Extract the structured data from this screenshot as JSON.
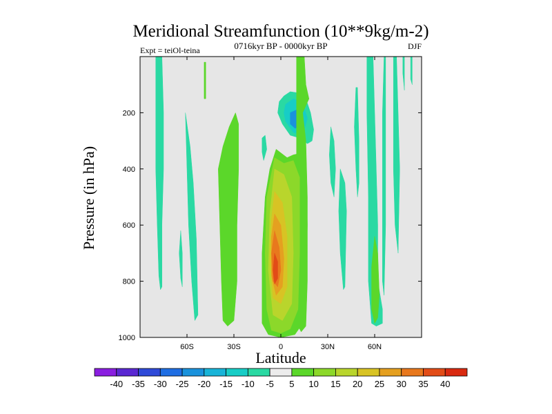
{
  "chart_data": {
    "type": "heatmap",
    "title": "Meridional Streamfunction (10**9kg/m-2)",
    "subtitle": "0716kyr BP - 0000kyr BP",
    "left_label": "Expt = teiOl-teina",
    "right_label": "DJF",
    "xlabel": "Latitude",
    "ylabel": "Pressure (in hPa)",
    "xlim": [
      -90,
      90
    ],
    "ylim": [
      1000,
      0
    ],
    "x_ticks": [
      {
        "value": -60,
        "label": "60S"
      },
      {
        "value": -30,
        "label": "30S"
      },
      {
        "value": 0,
        "label": "0"
      },
      {
        "value": 30,
        "label": "30N"
      },
      {
        "value": 60,
        "label": "60N"
      }
    ],
    "y_ticks": [
      {
        "value": 200,
        "label": "200"
      },
      {
        "value": 400,
        "label": "400"
      },
      {
        "value": 600,
        "label": "600"
      },
      {
        "value": 800,
        "label": "800"
      },
      {
        "value": 1000,
        "label": "1000"
      }
    ],
    "background_color": "#e6e6e6",
    "colorbar": {
      "boundaries": [
        "-40",
        "-35",
        "-30",
        "-25",
        "-20",
        "-15",
        "-10",
        "-5",
        "5",
        "10",
        "15",
        "20",
        "25",
        "30",
        "35",
        "40"
      ],
      "colors": [
        "#8a1ee0",
        "#5a28d2",
        "#2f4ad8",
        "#1f6ee3",
        "#1a92dc",
        "#18b4d8",
        "#17cdc6",
        "#2ad9a3",
        "#ececec",
        "#5bd72a",
        "#8cd82a",
        "#b9d52c",
        "#d8c324",
        "#e5a020",
        "#e8781d",
        "#e24c17",
        "#d92a10"
      ]
    },
    "contour_regions": [
      {
        "name": "cyan-column-60S",
        "level": "-10..-5",
        "color": "#2ad9a3",
        "polygon": [
          [
            -80,
            0
          ],
          [
            -76,
            0
          ],
          [
            -75,
            200
          ],
          [
            -75,
            400
          ],
          [
            -76,
            600
          ],
          [
            -76,
            820
          ],
          [
            -77,
            830
          ],
          [
            -78,
            780
          ],
          [
            -79,
            600
          ],
          [
            -80,
            400
          ],
          [
            -80,
            200
          ]
        ]
      },
      {
        "name": "cyan-column-48S",
        "level": "-10..-5",
        "color": "#2ad9a3",
        "polygon": [
          [
            -64,
            620
          ],
          [
            -63,
            700
          ],
          [
            -63,
            820
          ],
          [
            -64,
            790
          ],
          [
            -65,
            700
          ]
        ]
      },
      {
        "name": "cyan-column-57S",
        "level": "-10..-5",
        "color": "#2ad9a3",
        "polygon": [
          [
            -61,
            200
          ],
          [
            -58,
            320
          ],
          [
            -56,
            450
          ],
          [
            -54,
            650
          ],
          [
            -53,
            920
          ],
          [
            -55,
            940
          ],
          [
            -57,
            800
          ],
          [
            -59,
            600
          ],
          [
            -60,
            400
          ]
        ]
      },
      {
        "name": "green-blob-50S",
        "level": "5..10",
        "color": "#5bd72a",
        "polygon": [
          [
            -49,
            20
          ],
          [
            -48,
            20
          ],
          [
            -48,
            150
          ],
          [
            -49,
            150
          ]
        ]
      },
      {
        "name": "green-column-30S",
        "level": "5..10",
        "color": "#5bd72a",
        "polygon": [
          [
            -29,
            200
          ],
          [
            -27,
            240
          ],
          [
            -27,
            400
          ],
          [
            -28,
            600
          ],
          [
            -28,
            800
          ],
          [
            -30,
            940
          ],
          [
            -34,
            960
          ],
          [
            -37,
            940
          ],
          [
            -38,
            800
          ],
          [
            -39,
            600
          ],
          [
            -40,
            400
          ],
          [
            -37,
            320
          ],
          [
            -33,
            250
          ]
        ]
      },
      {
        "name": "cyan-upper-cell-eq",
        "level": "-10..-5",
        "color": "#2ad9a3",
        "polygon": [
          [
            2,
            140
          ],
          [
            6,
            125
          ],
          [
            12,
            130
          ],
          [
            16,
            150
          ],
          [
            19,
            200
          ],
          [
            21,
            260
          ],
          [
            20,
            300
          ],
          [
            17,
            310
          ],
          [
            12,
            290
          ],
          [
            6,
            280
          ],
          [
            1,
            240
          ],
          [
            -2,
            200
          ],
          [
            -1,
            160
          ]
        ]
      },
      {
        "name": "teal-upper-cell",
        "level": "-15..-10",
        "color": "#17cdc6",
        "polygon": [
          [
            3,
            170
          ],
          [
            8,
            150
          ],
          [
            14,
            165
          ],
          [
            17,
            220
          ],
          [
            14,
            280
          ],
          [
            8,
            270
          ],
          [
            3,
            230
          ],
          [
            2,
            200
          ]
        ]
      },
      {
        "name": "blue-upper-core",
        "level": "-20..-15",
        "color": "#1a92dc",
        "polygon": [
          [
            6,
            200
          ],
          [
            10,
            190
          ],
          [
            13,
            210
          ],
          [
            13,
            250
          ],
          [
            9,
            255
          ],
          [
            6,
            240
          ]
        ]
      },
      {
        "name": "green-column-eq-north",
        "level": "5..10",
        "color": "#5bd72a",
        "polygon": [
          [
            10,
            0
          ],
          [
            15,
            0
          ],
          [
            16,
            100
          ],
          [
            18,
            150
          ],
          [
            14,
            200
          ],
          [
            16,
            300
          ],
          [
            17,
            500
          ],
          [
            17,
            800
          ],
          [
            16,
            960
          ],
          [
            13,
            980
          ],
          [
            10,
            950
          ],
          [
            9,
            600
          ],
          [
            10,
            400
          ],
          [
            10,
            200
          ]
        ]
      },
      {
        "name": "cyan-small-eq",
        "level": "-10..-5",
        "color": "#2ad9a3",
        "polygon": [
          [
            -12,
            290
          ],
          [
            -10,
            280
          ],
          [
            -9,
            330
          ],
          [
            -11,
            370
          ],
          [
            -12,
            340
          ]
        ]
      },
      {
        "name": "green-main-cell",
        "level": "5..10",
        "color": "#5bd72a",
        "polygon": [
          [
            -3,
            330
          ],
          [
            4,
            360
          ],
          [
            8,
            350
          ],
          [
            12,
            345
          ],
          [
            16,
            400
          ],
          [
            17,
            600
          ],
          [
            16,
            800
          ],
          [
            14,
            950
          ],
          [
            9,
            990
          ],
          [
            0,
            1000
          ],
          [
            -8,
            990
          ],
          [
            -12,
            950
          ],
          [
            -12,
            700
          ],
          [
            -10,
            500
          ],
          [
            -7,
            400
          ]
        ]
      },
      {
        "name": "yellow-green-cell",
        "level": "10..15",
        "color": "#8cd82a",
        "polygon": [
          [
            -4,
            360
          ],
          [
            2,
            380
          ],
          [
            8,
            370
          ],
          [
            12,
            430
          ],
          [
            12,
            700
          ],
          [
            11,
            900
          ],
          [
            6,
            970
          ],
          [
            0,
            985
          ],
          [
            -6,
            975
          ],
          [
            -9,
            900
          ],
          [
            -10,
            700
          ],
          [
            -9,
            500
          ]
        ]
      },
      {
        "name": "yellow-cell",
        "level": "15..20",
        "color": "#b9d52c",
        "polygon": [
          [
            -4,
            400
          ],
          [
            2,
            420
          ],
          [
            7,
            500
          ],
          [
            8,
            700
          ],
          [
            7,
            880
          ],
          [
            1,
            940
          ],
          [
            -5,
            920
          ],
          [
            -8,
            760
          ],
          [
            -7,
            560
          ]
        ]
      },
      {
        "name": "gold-cell",
        "level": "20..25",
        "color": "#d8c324",
        "polygon": [
          [
            -4,
            480
          ],
          [
            1,
            520
          ],
          [
            4,
            640
          ],
          [
            4,
            820
          ],
          [
            0,
            880
          ],
          [
            -5,
            860
          ],
          [
            -7,
            720
          ],
          [
            -6,
            580
          ]
        ]
      },
      {
        "name": "orange-cell",
        "level": "25..30",
        "color": "#e5a020",
        "polygon": [
          [
            -4,
            560
          ],
          [
            0,
            600
          ],
          [
            2,
            720
          ],
          [
            1,
            820
          ],
          [
            -3,
            850
          ],
          [
            -6,
            780
          ],
          [
            -6,
            640
          ]
        ]
      },
      {
        "name": "dark-orange-cell",
        "level": "30..35",
        "color": "#e8781d",
        "polygon": [
          [
            -4,
            620
          ],
          [
            -1,
            680
          ],
          [
            0,
            760
          ],
          [
            -2,
            820
          ],
          [
            -5,
            800
          ],
          [
            -6,
            700
          ]
        ]
      },
      {
        "name": "red-core",
        "level": "35..40",
        "color": "#e24c17",
        "polygon": [
          [
            -4,
            700
          ],
          [
            -2,
            730
          ],
          [
            -2,
            790
          ],
          [
            -4,
            810
          ],
          [
            -5,
            760
          ]
        ]
      },
      {
        "name": "cyan-column-33N",
        "level": "-10..-5",
        "color": "#2ad9a3",
        "polygon": [
          [
            32,
            250
          ],
          [
            34,
            300
          ],
          [
            35,
            400
          ],
          [
            34,
            500
          ],
          [
            32,
            450
          ],
          [
            31,
            350
          ]
        ]
      },
      {
        "name": "cyan-column-40N",
        "level": "-10..-5",
        "color": "#2ad9a3",
        "polygon": [
          [
            38,
            400
          ],
          [
            41,
            450
          ],
          [
            42,
            550
          ],
          [
            41,
            820
          ],
          [
            40,
            830
          ],
          [
            38,
            700
          ],
          [
            37,
            550
          ]
        ]
      },
      {
        "name": "cyan-column-48N",
        "level": "-10..-5",
        "color": "#2ad9a3",
        "polygon": [
          [
            48,
            110
          ],
          [
            49,
            110
          ],
          [
            50,
            300
          ],
          [
            50,
            450
          ],
          [
            49,
            500
          ],
          [
            48,
            400
          ],
          [
            47,
            250
          ]
        ]
      },
      {
        "name": "cyan-column-57N",
        "level": "-10..-5",
        "color": "#2ad9a3",
        "polygon": [
          [
            55,
            0
          ],
          [
            59,
            0
          ],
          [
            60,
            200
          ],
          [
            61,
            400
          ],
          [
            62,
            600
          ],
          [
            62,
            800
          ],
          [
            65,
            900
          ],
          [
            65,
            950
          ],
          [
            61,
            960
          ],
          [
            58,
            950
          ],
          [
            56,
            800
          ],
          [
            56,
            500
          ],
          [
            55,
            200
          ]
        ]
      },
      {
        "name": "green-column-63N",
        "level": "5..10",
        "color": "#5bd72a",
        "polygon": [
          [
            60,
            640
          ],
          [
            62,
            700
          ],
          [
            63,
            850
          ],
          [
            62,
            930
          ],
          [
            60,
            950
          ],
          [
            58,
            900
          ],
          [
            58,
            750
          ]
        ]
      },
      {
        "name": "cyan-column-68N",
        "level": "-10..-5",
        "color": "#2ad9a3",
        "polygon": [
          [
            66,
            0
          ],
          [
            67,
            0
          ],
          [
            67,
            100
          ],
          [
            67,
            400
          ],
          [
            67,
            600
          ],
          [
            66,
            850
          ],
          [
            65,
            800
          ],
          [
            65,
            500
          ],
          [
            65,
            200
          ]
        ]
      },
      {
        "name": "cyan-column-74N",
        "level": "-10..-5",
        "color": "#2ad9a3",
        "polygon": [
          [
            72,
            0
          ],
          [
            74,
            0
          ],
          [
            75,
            200
          ],
          [
            76,
            400
          ],
          [
            75,
            700
          ],
          [
            73,
            600
          ],
          [
            72,
            400
          ]
        ]
      },
      {
        "name": "cyan-column-79N",
        "level": "-10..-5",
        "color": "#2ad9a3",
        "polygon": [
          [
            78,
            0
          ],
          [
            79,
            0
          ],
          [
            79,
            120
          ],
          [
            78,
            60
          ]
        ]
      },
      {
        "name": "cyan-column-84N",
        "level": "-10..-5",
        "color": "#2ad9a3",
        "polygon": [
          [
            83,
            0
          ],
          [
            84,
            0
          ],
          [
            84,
            100
          ],
          [
            83,
            80
          ]
        ]
      }
    ]
  }
}
